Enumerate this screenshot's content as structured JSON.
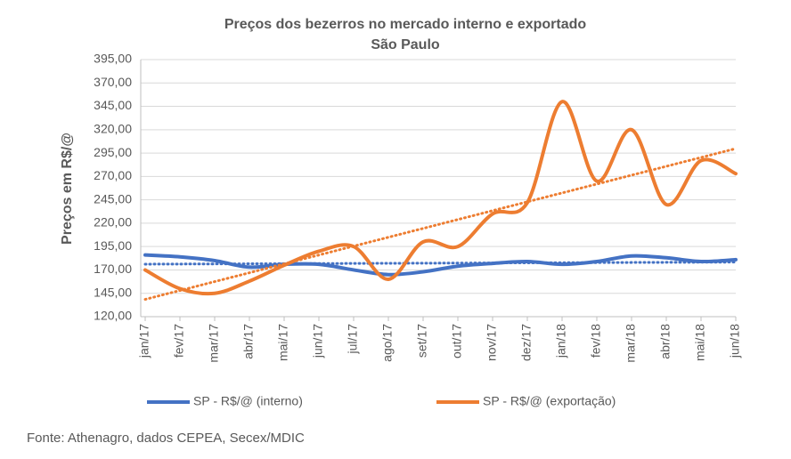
{
  "chart_data": {
    "type": "line",
    "title": "Preços dos bezerros no mercado interno e exportado",
    "subtitle": "São Paulo",
    "y_label": "Preços em R$/@",
    "source": "Fonte: Athenagro, dados CEPEA, Secex/MDIC",
    "categories": [
      "jan/17",
      "fev/17",
      "mar/17",
      "abr/17",
      "mai/17",
      "jun/17",
      "jul/17",
      "ago/17",
      "set/17",
      "out/17",
      "nov/17",
      "dez/17",
      "jan/18",
      "fev/18",
      "mar/18",
      "abr/18",
      "mai/18",
      "jun/18"
    ],
    "series": [
      {
        "name": "SP - R$/@ (interno)",
        "color": "#4472c4",
        "values": [
          186,
          184,
          180,
          173,
          176,
          176,
          170,
          165,
          168,
          174,
          177,
          179,
          176,
          179,
          185,
          183,
          179,
          181
        ]
      },
      {
        "name": "SP - R$/@ (exportação)",
        "color": "#ed7d31",
        "values": [
          170,
          150,
          145,
          158,
          175,
          190,
          195,
          160,
          200,
          195,
          230,
          242,
          350,
          265,
          320,
          240,
          287,
          273
        ]
      }
    ],
    "ylim": [
      120,
      395
    ],
    "yticks": [
      {
        "value": 120,
        "label": "120,00"
      },
      {
        "value": 145,
        "label": "145,00"
      },
      {
        "value": 170,
        "label": "170,00"
      },
      {
        "value": 195,
        "label": "195,00"
      },
      {
        "value": 220,
        "label": "220,00"
      },
      {
        "value": 245,
        "label": "245,00"
      },
      {
        "value": 270,
        "label": "270,00"
      },
      {
        "value": 295,
        "label": "295,00"
      },
      {
        "value": 320,
        "label": "320,00"
      },
      {
        "value": 345,
        "label": "345,00"
      },
      {
        "value": 370,
        "label": "370,00"
      },
      {
        "value": 395,
        "label": "395,00"
      }
    ],
    "grid": true,
    "smooth": true,
    "trendline": true,
    "legend": "bottom"
  }
}
